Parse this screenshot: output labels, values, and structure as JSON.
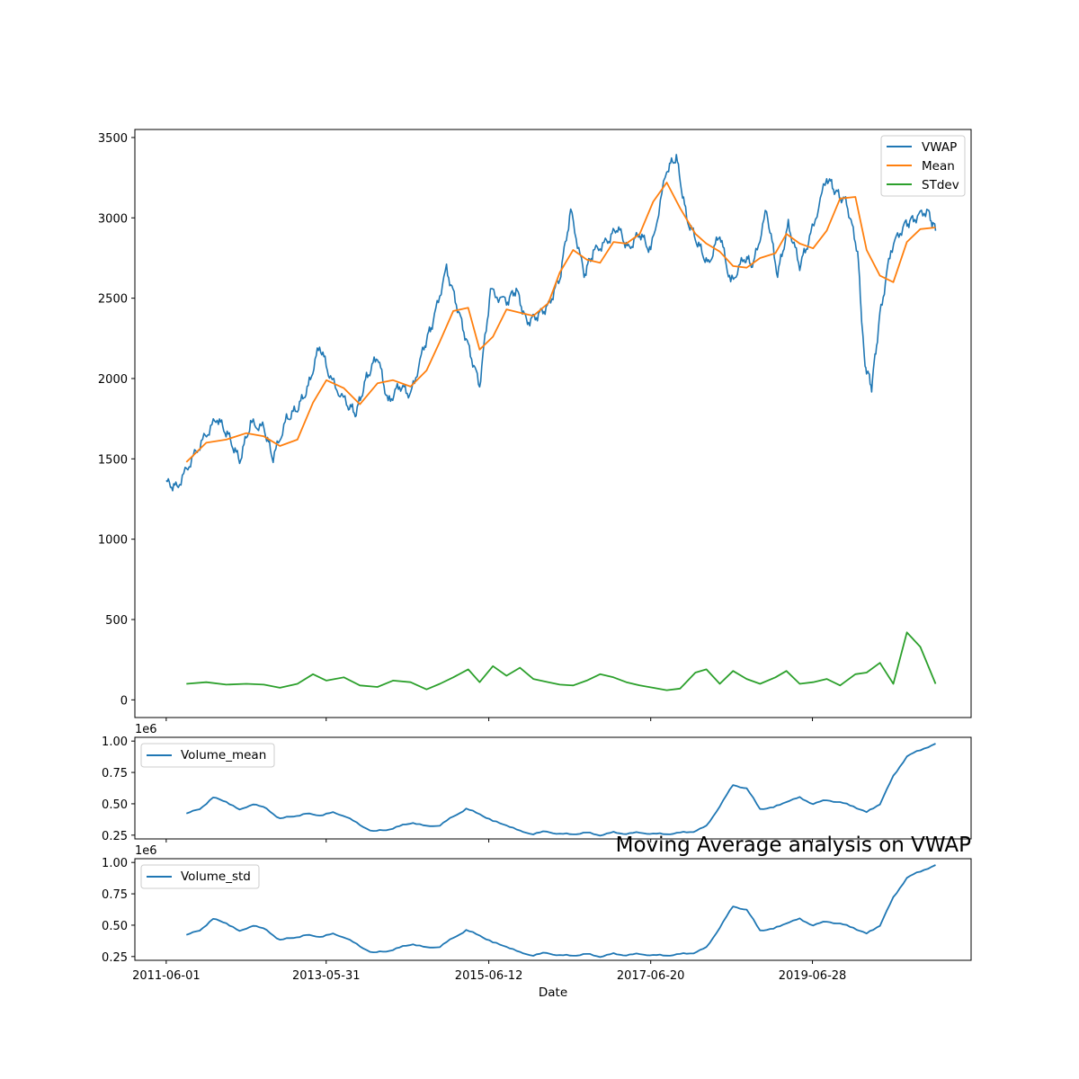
{
  "figure_title": "Moving Average analysis on VWAP",
  "colors": {
    "vwap": "#1f77b4",
    "mean": "#ff7f0e",
    "stdev": "#2ca02c",
    "volume": "#1f77b4"
  },
  "chart_data": [
    {
      "type": "line",
      "ylim": [
        -110,
        3550
      ],
      "yticks": [
        "0",
        "500",
        "1000",
        "1500",
        "2000",
        "2500",
        "3000",
        "3500"
      ],
      "legend": "top-right",
      "grid": false,
      "series": [
        {
          "name": "VWAP",
          "x": [
            "2011-06-01",
            "2011-07-20",
            "2011-09-20",
            "2011-11-20",
            "2012-01-20",
            "2012-03-10",
            "2012-05-01",
            "2012-06-20",
            "2012-08-20",
            "2012-10-01",
            "2012-12-01",
            "2013-01-20",
            "2013-03-10",
            "2013-05-01",
            "2013-06-20",
            "2013-09-01",
            "2013-10-15",
            "2013-12-01",
            "2014-01-20",
            "2014-03-10",
            "2014-05-01",
            "2014-06-20",
            "2014-08-20",
            "2014-10-01",
            "2014-12-01",
            "2015-01-20",
            "2015-03-10",
            "2015-05-01",
            "2015-06-20",
            "2015-09-01",
            "2015-10-15",
            "2015-12-01",
            "2016-01-20",
            "2016-03-10",
            "2016-05-01",
            "2016-06-20",
            "2016-08-20",
            "2016-10-01",
            "2016-12-01",
            "2017-01-20",
            "2017-03-10",
            "2017-05-01",
            "2017-06-20",
            "2017-09-01",
            "2017-10-15",
            "2017-12-01",
            "2018-01-20",
            "2018-03-10",
            "2018-05-01",
            "2018-06-20",
            "2018-08-20",
            "2018-10-01",
            "2018-12-01",
            "2019-01-20",
            "2019-03-10",
            "2019-05-01",
            "2019-06-20",
            "2019-09-01",
            "2019-10-15",
            "2019-12-01",
            "2020-01-20",
            "2020-02-20",
            "2020-03-24",
            "2020-05-01",
            "2020-06-20",
            "2020-08-20",
            "2020-10-01",
            "2020-12-01",
            "2021-01-10"
          ],
          "values": [
            1350,
            1330,
            1480,
            1620,
            1760,
            1650,
            1480,
            1720,
            1700,
            1500,
            1740,
            1820,
            1950,
            2200,
            2000,
            1850,
            1780,
            2000,
            2150,
            1850,
            1950,
            1900,
            2200,
            2350,
            2680,
            2450,
            2200,
            1950,
            2550,
            2480,
            2550,
            2350,
            2400,
            2450,
            2620,
            3050,
            2650,
            2780,
            2850,
            2950,
            2800,
            2900,
            2800,
            3300,
            3370,
            3000,
            2850,
            2700,
            2900,
            2600,
            2750,
            2700,
            3050,
            2650,
            2950,
            2700,
            2900,
            3250,
            3150,
            3100,
            2800,
            2100,
            1950,
            2400,
            2800,
            2950,
            3000,
            3050,
            2920
          ]
        },
        {
          "name": "Mean",
          "x": [
            "2011-09-01",
            "2011-12-01",
            "2012-03-01",
            "2012-06-01",
            "2012-08-20",
            "2012-11-01",
            "2013-01-20",
            "2013-04-01",
            "2013-06-01",
            "2013-08-20",
            "2013-11-01",
            "2014-01-20",
            "2014-04-01",
            "2014-06-20",
            "2014-09-01",
            "2014-11-01",
            "2015-01-01",
            "2015-03-10",
            "2015-05-01",
            "2015-07-01",
            "2015-09-01",
            "2015-11-01",
            "2016-01-01",
            "2016-03-10",
            "2016-05-01",
            "2016-07-01",
            "2016-09-01",
            "2016-11-01",
            "2017-01-01",
            "2017-03-01",
            "2017-05-01",
            "2017-07-01",
            "2017-09-01",
            "2017-11-01",
            "2018-01-10",
            "2018-03-01",
            "2018-05-01",
            "2018-07-01",
            "2018-09-01",
            "2018-11-01",
            "2019-01-10",
            "2019-03-01",
            "2019-05-01",
            "2019-07-01",
            "2019-09-01",
            "2019-11-01",
            "2020-01-10",
            "2020-03-01",
            "2020-05-01",
            "2020-07-01",
            "2020-09-01",
            "2020-11-01",
            "2021-01-10"
          ],
          "values": [
            1480,
            1600,
            1620,
            1660,
            1640,
            1580,
            1620,
            1850,
            1990,
            1940,
            1840,
            1970,
            1990,
            1950,
            2050,
            2230,
            2420,
            2440,
            2180,
            2260,
            2430,
            2410,
            2390,
            2470,
            2660,
            2800,
            2740,
            2720,
            2850,
            2840,
            2900,
            3100,
            3220,
            3060,
            2900,
            2840,
            2790,
            2700,
            2690,
            2750,
            2780,
            2900,
            2840,
            2810,
            2920,
            3120,
            3130,
            2800,
            2640,
            2600,
            2850,
            2930,
            2940
          ]
        },
        {
          "name": "STdev",
          "x": [
            "2011-09-01",
            "2011-12-01",
            "2012-03-01",
            "2012-06-01",
            "2012-08-20",
            "2012-11-01",
            "2013-01-20",
            "2013-04-01",
            "2013-06-01",
            "2013-08-20",
            "2013-11-01",
            "2014-01-20",
            "2014-04-01",
            "2014-06-20",
            "2014-09-01",
            "2014-11-01",
            "2015-01-01",
            "2015-03-10",
            "2015-05-01",
            "2015-07-01",
            "2015-09-01",
            "2015-11-01",
            "2016-01-01",
            "2016-03-10",
            "2016-05-01",
            "2016-07-01",
            "2016-09-01",
            "2016-11-01",
            "2017-01-01",
            "2017-03-01",
            "2017-05-01",
            "2017-07-01",
            "2017-09-01",
            "2017-11-01",
            "2018-01-10",
            "2018-03-01",
            "2018-05-01",
            "2018-07-01",
            "2018-09-01",
            "2018-11-01",
            "2019-01-10",
            "2019-03-01",
            "2019-05-01",
            "2019-07-01",
            "2019-09-01",
            "2019-11-01",
            "2020-01-10",
            "2020-03-01",
            "2020-05-01",
            "2020-07-01",
            "2020-09-01",
            "2020-11-01",
            "2021-01-10"
          ],
          "values": [
            100,
            110,
            95,
            100,
            95,
            75,
            100,
            160,
            120,
            140,
            90,
            80,
            120,
            110,
            65,
            100,
            140,
            190,
            110,
            210,
            150,
            200,
            130,
            110,
            95,
            90,
            120,
            160,
            140,
            110,
            90,
            75,
            60,
            70,
            170,
            190,
            100,
            180,
            130,
            100,
            140,
            180,
            100,
            110,
            130,
            90,
            160,
            170,
            230,
            100,
            420,
            330,
            100
          ]
        }
      ]
    },
    {
      "type": "line",
      "multiplier": "1e6",
      "ylim": [
        0.22,
        1.03
      ],
      "yticks": [
        "0.25",
        "0.50",
        "0.75",
        "1.00"
      ],
      "legend": "top-left",
      "series": [
        {
          "name": "Volume_mean",
          "x": [
            "2011-09-01",
            "2011-11-01",
            "2012-01-01",
            "2012-03-01",
            "2012-05-01",
            "2012-07-01",
            "2012-09-01",
            "2012-11-01",
            "2013-01-01",
            "2013-03-01",
            "2013-05-01",
            "2013-07-01",
            "2013-09-01",
            "2013-11-01",
            "2014-01-01",
            "2014-03-01",
            "2014-05-01",
            "2014-07-01",
            "2014-09-01",
            "2014-11-01",
            "2015-01-01",
            "2015-03-01",
            "2015-05-01",
            "2015-07-01",
            "2015-09-01",
            "2015-11-01",
            "2016-01-01",
            "2016-03-01",
            "2016-05-01",
            "2016-07-01",
            "2016-09-01",
            "2016-11-01",
            "2017-01-01",
            "2017-03-01",
            "2017-05-01",
            "2017-07-01",
            "2017-09-01",
            "2017-11-01",
            "2018-01-01",
            "2018-03-01",
            "2018-05-01",
            "2018-07-01",
            "2018-09-01",
            "2018-11-01",
            "2019-01-01",
            "2019-03-01",
            "2019-05-01",
            "2019-07-01",
            "2019-09-01",
            "2019-11-01",
            "2020-01-01",
            "2020-03-01",
            "2020-05-01",
            "2020-07-01",
            "2020-09-01",
            "2020-11-01",
            "2021-01-10"
          ],
          "values": [
            0.42,
            0.46,
            0.55,
            0.52,
            0.45,
            0.5,
            0.46,
            0.38,
            0.4,
            0.42,
            0.41,
            0.43,
            0.4,
            0.33,
            0.28,
            0.29,
            0.32,
            0.35,
            0.32,
            0.33,
            0.4,
            0.46,
            0.42,
            0.36,
            0.33,
            0.28,
            0.26,
            0.28,
            0.26,
            0.26,
            0.27,
            0.25,
            0.27,
            0.26,
            0.27,
            0.26,
            0.26,
            0.27,
            0.28,
            0.32,
            0.48,
            0.65,
            0.62,
            0.46,
            0.47,
            0.52,
            0.55,
            0.5,
            0.53,
            0.51,
            0.48,
            0.43,
            0.5,
            0.72,
            0.88,
            0.93,
            0.98
          ]
        }
      ]
    },
    {
      "type": "line",
      "multiplier": "1e6",
      "ylim": [
        0.22,
        1.03
      ],
      "yticks": [
        "0.25",
        "0.50",
        "0.75",
        "1.00"
      ],
      "xticks": [
        "2011-06-01",
        "2013-05-31",
        "2015-06-12",
        "2017-06-20",
        "2019-06-28"
      ],
      "xlabel": "Date",
      "legend": "top-left",
      "series": [
        {
          "name": "Volume_std",
          "x": [
            "2011-09-01",
            "2011-11-01",
            "2012-01-01",
            "2012-03-01",
            "2012-05-01",
            "2012-07-01",
            "2012-09-01",
            "2012-11-01",
            "2013-01-01",
            "2013-03-01",
            "2013-05-01",
            "2013-07-01",
            "2013-09-01",
            "2013-11-01",
            "2014-01-01",
            "2014-03-01",
            "2014-05-01",
            "2014-07-01",
            "2014-09-01",
            "2014-11-01",
            "2015-01-01",
            "2015-03-01",
            "2015-05-01",
            "2015-07-01",
            "2015-09-01",
            "2015-11-01",
            "2016-01-01",
            "2016-03-01",
            "2016-05-01",
            "2016-07-01",
            "2016-09-01",
            "2016-11-01",
            "2017-01-01",
            "2017-03-01",
            "2017-05-01",
            "2017-07-01",
            "2017-09-01",
            "2017-11-01",
            "2018-01-01",
            "2018-03-01",
            "2018-05-01",
            "2018-07-01",
            "2018-09-01",
            "2018-11-01",
            "2019-01-01",
            "2019-03-01",
            "2019-05-01",
            "2019-07-01",
            "2019-09-01",
            "2019-11-01",
            "2020-01-01",
            "2020-03-01",
            "2020-05-01",
            "2020-07-01",
            "2020-09-01",
            "2020-11-01",
            "2021-01-10"
          ],
          "values": [
            0.42,
            0.46,
            0.55,
            0.52,
            0.45,
            0.5,
            0.46,
            0.38,
            0.4,
            0.42,
            0.41,
            0.43,
            0.4,
            0.33,
            0.28,
            0.29,
            0.32,
            0.35,
            0.32,
            0.33,
            0.4,
            0.46,
            0.42,
            0.36,
            0.33,
            0.28,
            0.26,
            0.28,
            0.26,
            0.26,
            0.27,
            0.25,
            0.27,
            0.26,
            0.27,
            0.26,
            0.26,
            0.27,
            0.28,
            0.32,
            0.48,
            0.65,
            0.62,
            0.46,
            0.47,
            0.52,
            0.55,
            0.5,
            0.53,
            0.51,
            0.48,
            0.43,
            0.5,
            0.72,
            0.88,
            0.93,
            0.98
          ]
        }
      ]
    }
  ]
}
